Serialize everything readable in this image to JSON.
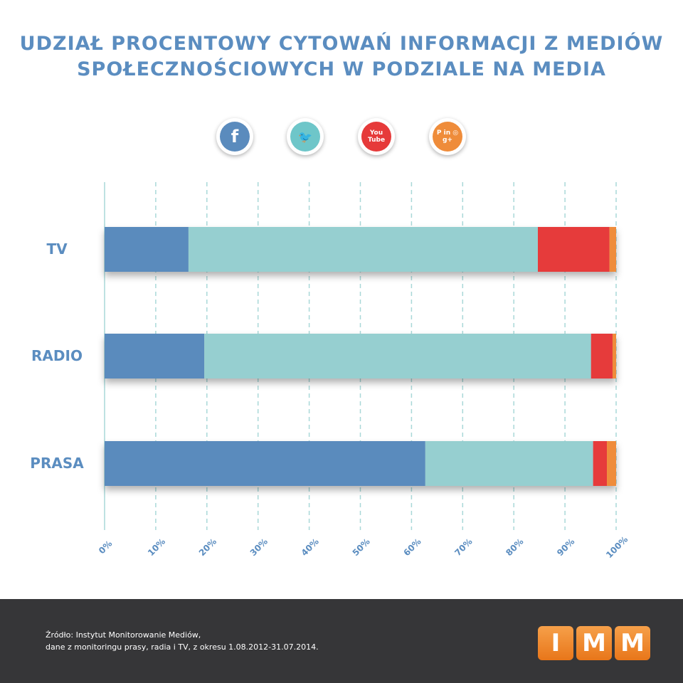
{
  "chart_data": {
    "type": "bar",
    "stacked": true,
    "orientation": "horizontal",
    "title": "UDZIAŁ PROCENTOWY CYTOWAŃ INFORMACJI Z MEDIÓW SPOŁECZNOŚCIOWYCH W PODZIALE NA MEDIA",
    "categories": [
      "TV",
      "RADIO",
      "PRASA"
    ],
    "series": [
      {
        "name": "Facebook",
        "color": "#5a8bbd",
        "values": [
          16.4,
          19.5,
          62.7
        ]
      },
      {
        "name": "Twitter",
        "color": "#96cfd0",
        "values": [
          68.3,
          75.6,
          32.8
        ]
      },
      {
        "name": "YouTube",
        "color": "#e63a3a",
        "values": [
          14.0,
          4.2,
          2.7
        ]
      },
      {
        "name": "Inne (Pinterest, LinkedIn, Instagram, Google+)",
        "color": "#ef8c3a",
        "values": [
          1.3,
          0.7,
          1.8
        ]
      }
    ],
    "xticks": [
      "0%",
      "10%",
      "20%",
      "30%",
      "40%",
      "50%",
      "60%",
      "70%",
      "80%",
      "90%",
      "100%"
    ],
    "xlim": [
      0,
      100
    ],
    "grid": true,
    "legend": "top"
  },
  "legend_icons": [
    {
      "name": "facebook-icon",
      "glyph": "f"
    },
    {
      "name": "twitter-icon",
      "glyph": "🐦"
    },
    {
      "name": "youtube-icon",
      "glyph": "You Tube"
    },
    {
      "name": "other-social-icon",
      "glyph": "P in ◎ g+"
    }
  ],
  "title_lines": [
    "UDZIAŁ PROCENTOWY CYTOWAŃ INFORMACJI Z MEDIÓW",
    "SPOŁECZNOŚCIOWYCH W PODZIALE NA MEDIA"
  ],
  "footer": {
    "source_line1": "Źródło: Instytut Monitorowanie Mediów,",
    "source_line2": "dane z monitoringu prasy, radia i TV, z okresu 1.08.2012-31.07.2014.",
    "logo": [
      "I",
      "M",
      "M"
    ]
  }
}
